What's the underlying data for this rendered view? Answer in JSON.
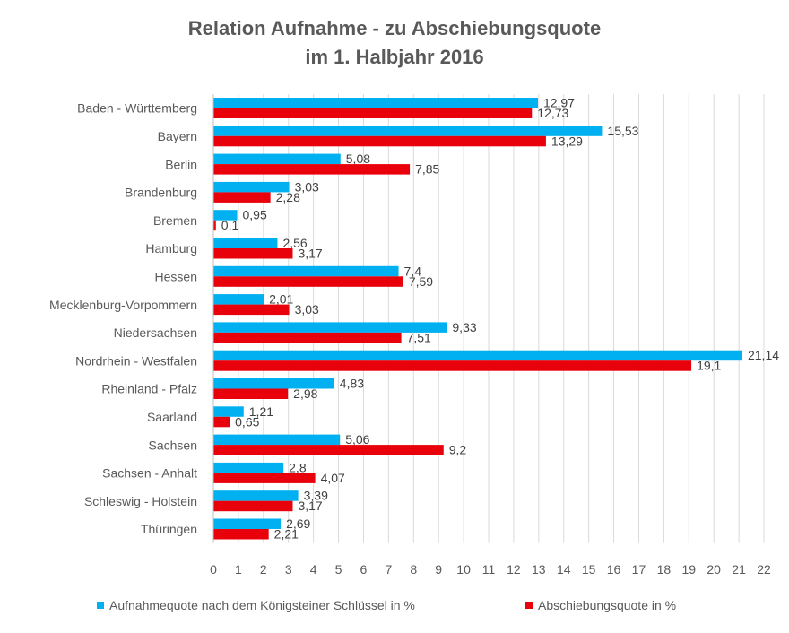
{
  "chart_data": {
    "type": "bar",
    "orientation": "horizontal",
    "title_line1": "Relation Aufnahme - zu Abschiebungsquote",
    "title_line2": "im 1. Halbjahr 2016",
    "categories": [
      "Baden - Württemberg",
      "Bayern",
      "Berlin",
      "Brandenburg",
      "Bremen",
      "Hamburg",
      "Hessen",
      "Mecklenburg-Vorpommern",
      "Niedersachsen",
      "Nordrhein - Westfalen",
      "Rheinland - Pfalz",
      "Saarland",
      "Sachsen",
      "Sachsen - Anhalt",
      "Schleswig - Holstein",
      "Thüringen"
    ],
    "series": [
      {
        "name": "Aufnahmequote nach dem Königsteiner Schlüssel in %",
        "color": "#00B0F0",
        "values": [
          12.97,
          15.53,
          5.08,
          3.03,
          0.95,
          2.56,
          7.4,
          2.01,
          9.33,
          21.14,
          4.83,
          1.21,
          5.06,
          2.8,
          3.39,
          2.69
        ],
        "labels": [
          "12,97",
          "15,53",
          "5,08",
          "3,03",
          "0,95",
          "2,56",
          "7,4",
          "2,01",
          "9,33",
          "21,14",
          "4,83",
          "1,21",
          "5,06",
          "2,8",
          "3,39",
          "2,69"
        ]
      },
      {
        "name": "Abschiebungsquote in %",
        "color": "#E8000B",
        "values": [
          12.73,
          13.29,
          7.85,
          2.28,
          0.1,
          3.17,
          7.59,
          3.03,
          7.51,
          19.1,
          2.98,
          0.65,
          9.2,
          4.07,
          3.17,
          2.21
        ],
        "labels": [
          "12,73",
          "13,29",
          "7,85",
          "2,28",
          "0,1",
          "3,17",
          "7,59",
          "3,03",
          "7,51",
          "19,1",
          "2,98",
          "0,65",
          "9,2",
          "4,07",
          "3,17",
          "2,21"
        ]
      }
    ],
    "xlim": [
      0,
      22
    ],
    "xticks": [
      "0",
      "1",
      "2",
      "3",
      "4",
      "5",
      "6",
      "7",
      "8",
      "9",
      "10",
      "11",
      "12",
      "13",
      "14",
      "15",
      "16",
      "17",
      "18",
      "19",
      "20",
      "21",
      "22"
    ],
    "grid": "vertical",
    "legend_position": "bottom"
  }
}
